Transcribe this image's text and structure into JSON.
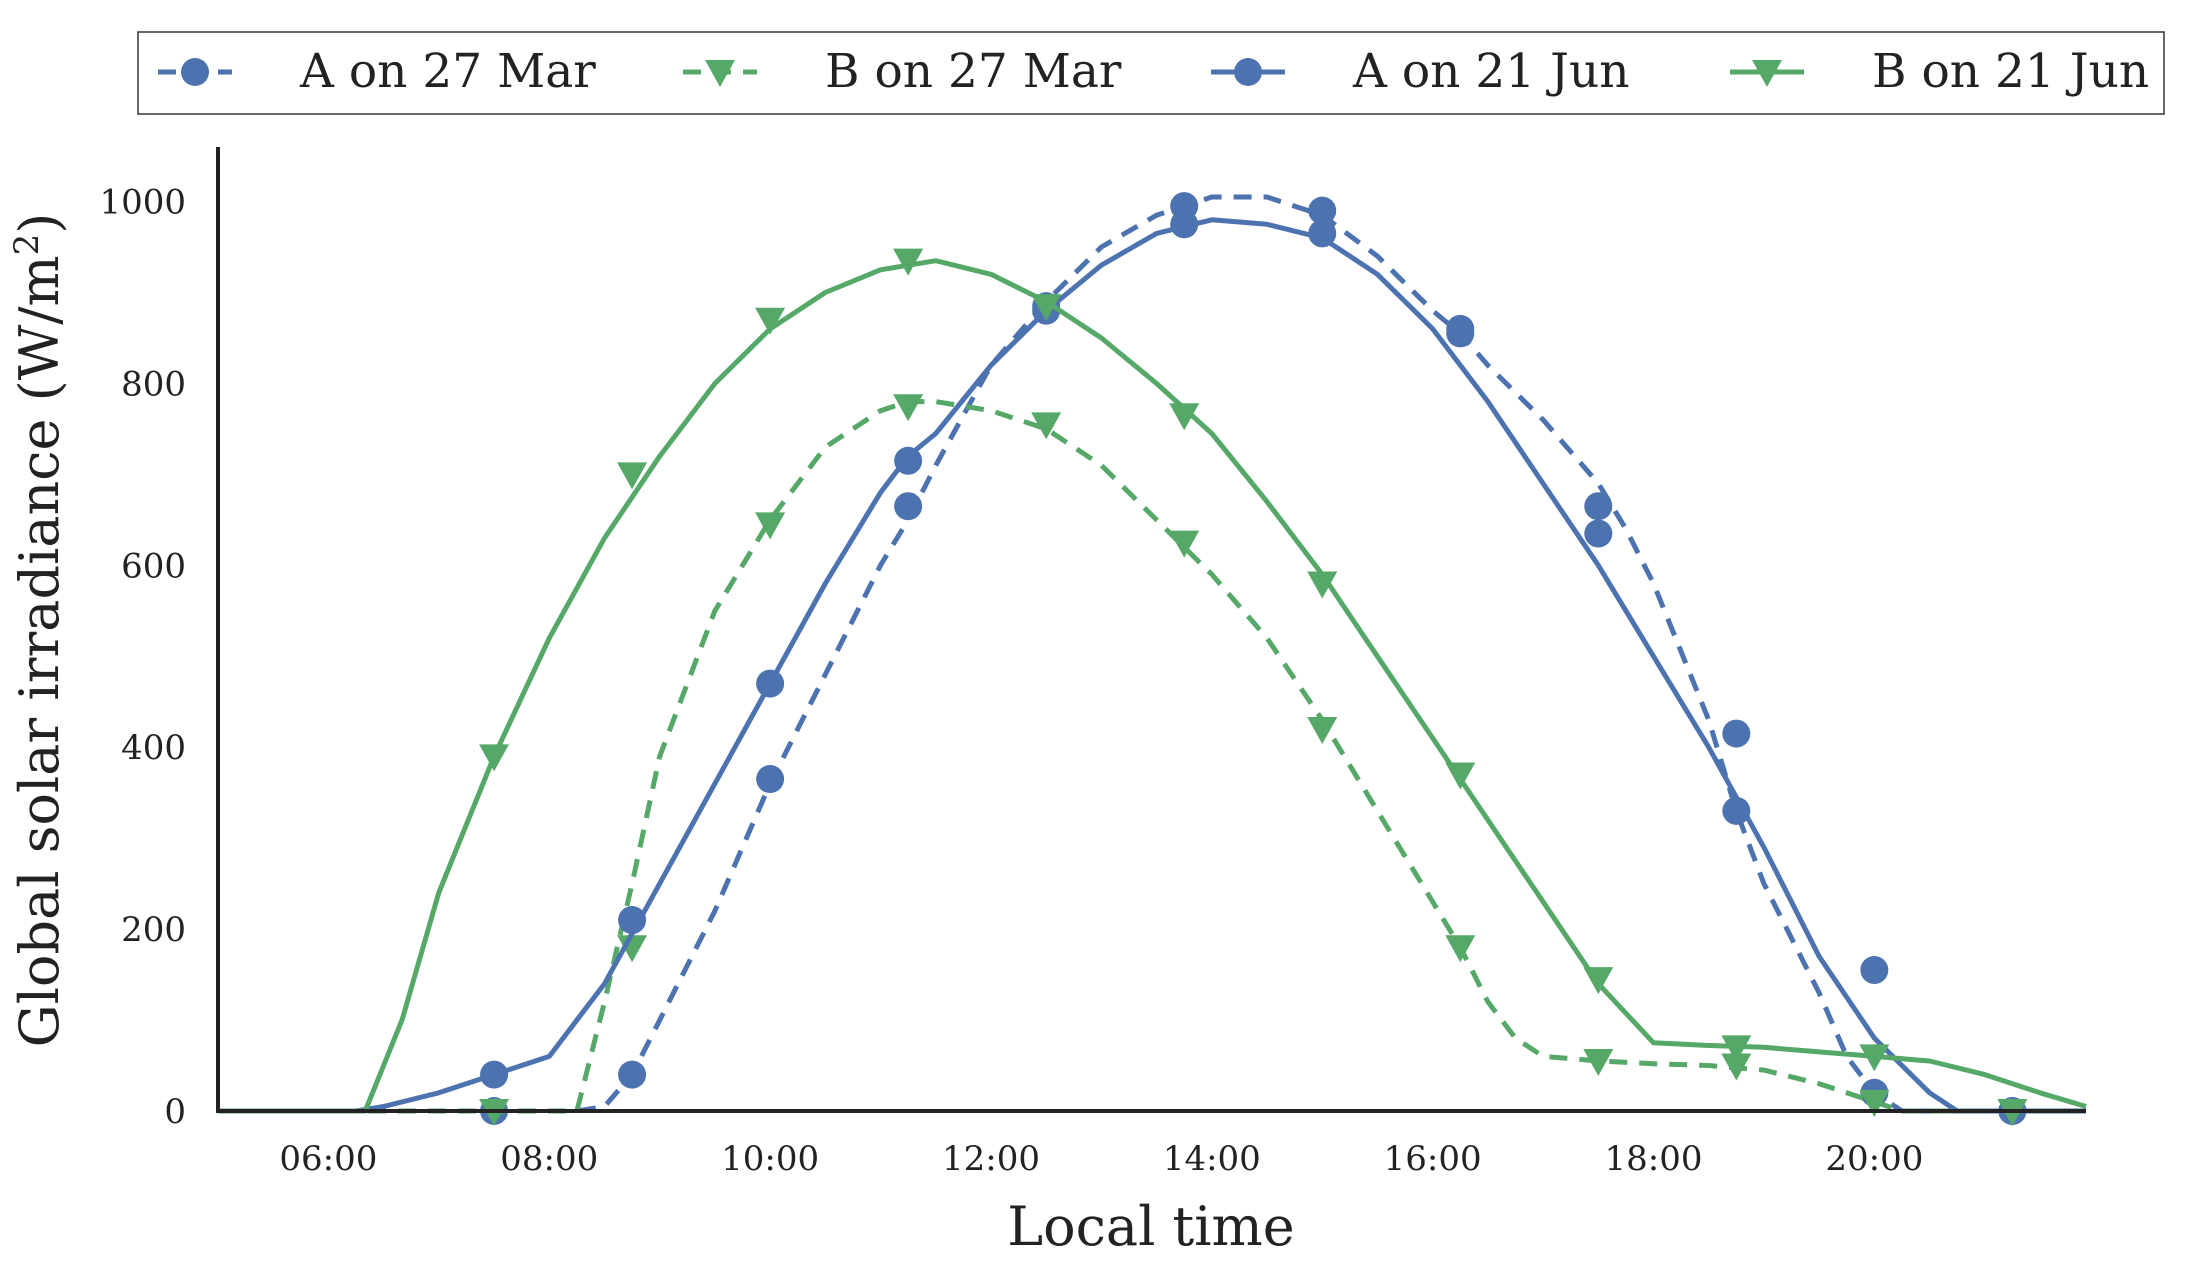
{
  "chart_data": {
    "type": "line",
    "xlabel": "Local time",
    "ylabel": "Global solar irradiance (W/m²)",
    "ylabel_parts": {
      "main": "Global solar irradiance (W/m",
      "superscript": "2",
      "close": ")"
    },
    "xlim": [
      "05:00",
      "21:55"
    ],
    "ylim": [
      0,
      1060
    ],
    "x_ticks": [
      "06:00",
      "08:00",
      "10:00",
      "12:00",
      "14:00",
      "16:00",
      "18:00",
      "20:00"
    ],
    "y_ticks": [
      "0",
      "200",
      "400",
      "600",
      "800",
      "1000"
    ],
    "grid": false,
    "legend_position": "top, above plot",
    "series": [
      {
        "name": "A on 27 Mar",
        "color": "#4c72b0",
        "line_style": "dashed",
        "marker": "circle",
        "x": [
          "05:00",
          "07:30",
          "08:15",
          "08:30",
          "08:45",
          "09:00",
          "09:30",
          "10:00",
          "10:30",
          "11:00",
          "11:15",
          "11:30",
          "12:00",
          "12:30",
          "13:00",
          "13:30",
          "13:45",
          "14:00",
          "14:30",
          "15:00",
          "15:30",
          "16:00",
          "16:15",
          "16:30",
          "17:00",
          "17:30",
          "17:45",
          "18:00",
          "18:30",
          "18:45",
          "19:00",
          "19:30",
          "19:45",
          "20:00",
          "20:15",
          "20:30",
          "21:00",
          "21:30",
          "21:55"
        ],
        "y": [
          0,
          0,
          0,
          5,
          40,
          100,
          220,
          360,
          480,
          600,
          650,
          710,
          820,
          890,
          950,
          985,
          995,
          1005,
          1005,
          985,
          940,
          880,
          855,
          820,
          760,
          690,
          640,
          580,
          430,
          330,
          250,
          130,
          60,
          20,
          0,
          0,
          0,
          0,
          0
        ],
        "markers_x": [
          "07:30",
          "08:45",
          "10:00",
          "11:15",
          "12:30",
          "13:45",
          "15:00",
          "16:15",
          "17:30",
          "18:45",
          "20:00",
          "21:15"
        ],
        "markers_y": [
          0,
          40,
          365,
          665,
          880,
          995,
          990,
          860,
          635,
          330,
          20,
          0
        ]
      },
      {
        "name": "B on 27 Mar",
        "color": "#55a868",
        "line_style": "dashed",
        "marker": "triangle-down",
        "x": [
          "05:00",
          "07:30",
          "08:15",
          "08:30",
          "08:45",
          "09:00",
          "09:30",
          "10:00",
          "10:30",
          "11:00",
          "11:15",
          "11:30",
          "12:00",
          "12:30",
          "13:00",
          "13:30",
          "13:45",
          "14:00",
          "14:30",
          "15:00",
          "15:30",
          "16:00",
          "16:15",
          "16:30",
          "16:45",
          "17:00",
          "17:30",
          "18:00",
          "18:30",
          "19:00",
          "19:30",
          "20:00",
          "20:15",
          "20:30",
          "21:00",
          "21:30",
          "21:55"
        ],
        "y": [
          0,
          0,
          0,
          120,
          250,
          390,
          550,
          650,
          730,
          770,
          780,
          780,
          770,
          750,
          710,
          650,
          620,
          590,
          520,
          430,
          330,
          230,
          180,
          120,
          80,
          60,
          55,
          52,
          50,
          45,
          30,
          10,
          0,
          0,
          0,
          0,
          0
        ],
        "markers_x": [
          "07:30",
          "08:45",
          "10:00",
          "11:15",
          "12:30",
          "13:45",
          "15:00",
          "16:15",
          "17:30",
          "18:45",
          "20:00",
          "21:15"
        ],
        "markers_y": [
          0,
          180,
          645,
          775,
          755,
          625,
          420,
          180,
          55,
          50,
          10,
          0
        ]
      },
      {
        "name": "A on 21 Jun",
        "color": "#4c72b0",
        "line_style": "solid",
        "marker": "circle",
        "x": [
          "05:00",
          "06:15",
          "06:30",
          "07:00",
          "07:30",
          "08:00",
          "08:30",
          "09:00",
          "09:30",
          "10:00",
          "10:30",
          "11:00",
          "11:15",
          "11:30",
          "12:00",
          "12:30",
          "13:00",
          "13:30",
          "14:00",
          "14:30",
          "15:00",
          "15:30",
          "16:00",
          "16:30",
          "17:00",
          "17:30",
          "18:00",
          "18:30",
          "19:00",
          "19:30",
          "20:00",
          "20:30",
          "20:45",
          "21:00",
          "21:30",
          "21:55"
        ],
        "y": [
          0,
          0,
          5,
          20,
          40,
          60,
          140,
          250,
          360,
          470,
          580,
          680,
          720,
          745,
          820,
          880,
          930,
          965,
          980,
          975,
          960,
          920,
          860,
          780,
          690,
          600,
          500,
          400,
          290,
          170,
          80,
          20,
          0,
          0,
          0,
          0
        ],
        "markers_x": [
          "07:30",
          "08:45",
          "10:00",
          "11:15",
          "12:30",
          "13:45",
          "15:00",
          "16:15",
          "17:30",
          "18:45",
          "20:00",
          "21:15"
        ],
        "markers_y": [
          40,
          210,
          470,
          715,
          885,
          975,
          965,
          855,
          665,
          415,
          155,
          0
        ]
      },
      {
        "name": "B on 21 Jun",
        "color": "#55a868",
        "line_style": "solid",
        "marker": "triangle-down",
        "x": [
          "05:00",
          "06:20",
          "06:40",
          "07:00",
          "07:30",
          "08:00",
          "08:30",
          "09:00",
          "09:30",
          "10:00",
          "10:30",
          "11:00",
          "11:30",
          "12:00",
          "12:30",
          "13:00",
          "13:30",
          "14:00",
          "14:30",
          "15:00",
          "15:30",
          "16:00",
          "16:30",
          "17:00",
          "17:30",
          "18:00",
          "18:30",
          "19:00",
          "19:30",
          "20:00",
          "20:30",
          "21:00",
          "21:30",
          "21:55"
        ],
        "y": [
          0,
          0,
          100,
          240,
          390,
          520,
          630,
          720,
          800,
          860,
          900,
          925,
          935,
          920,
          890,
          850,
          800,
          745,
          670,
          590,
          500,
          410,
          320,
          230,
          140,
          75,
          72,
          70,
          65,
          60,
          55,
          40,
          20,
          5
        ],
        "markers_x": [
          "07:30",
          "08:45",
          "10:00",
          "11:15",
          "12:30",
          "13:45",
          "15:00",
          "16:15",
          "17:30",
          "18:45",
          "20:00",
          "21:15"
        ],
        "markers_y": [
          390,
          700,
          870,
          935,
          885,
          765,
          580,
          370,
          145,
          70,
          60,
          0
        ]
      }
    ]
  }
}
